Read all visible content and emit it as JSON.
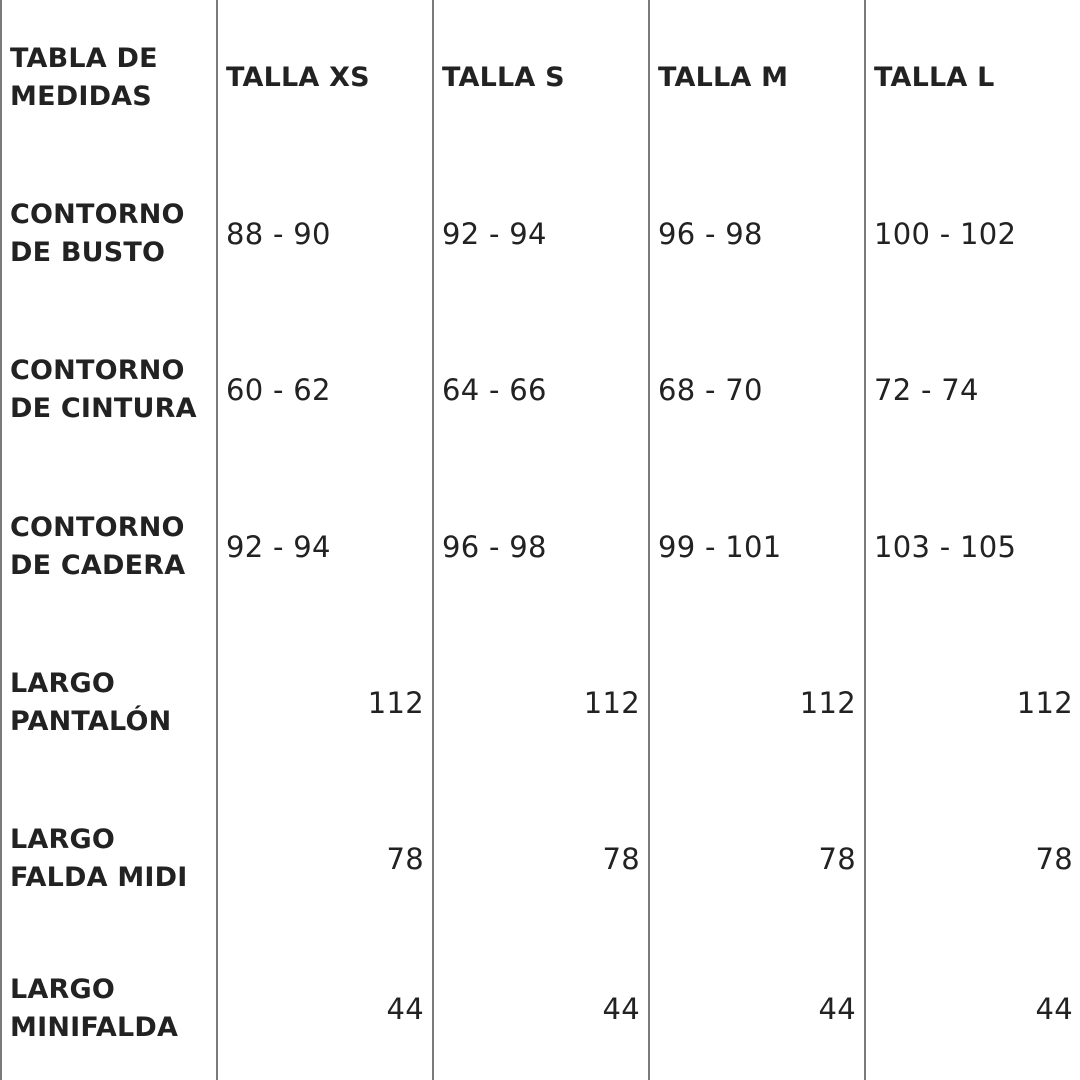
{
  "table": {
    "corner_label": "TABLA DE MEDIDAS",
    "columns": [
      "TALLA XS",
      "TALLA S",
      "TALLA M",
      "TALLA L"
    ],
    "rows": [
      {
        "label": "CONTORNO DE BUSTO",
        "values": [
          "88 - 90",
          "92 - 94",
          "96 - 98",
          "100 - 102"
        ]
      },
      {
        "label": "CONTORNO DE CINTURA",
        "values": [
          "60 - 62",
          "64 - 66",
          "68 - 70",
          "72 - 74"
        ]
      },
      {
        "label": "CONTORNO DE CADERA",
        "values": [
          "92 - 94",
          "96 - 98",
          "99 - 101",
          "103 - 105"
        ]
      },
      {
        "label": "LARGO PANTALÓN",
        "values": [
          "112",
          "112",
          "112",
          "112"
        ]
      },
      {
        "label": "LARGO FALDA MIDI",
        "values": [
          "78",
          "78",
          "78",
          "78"
        ]
      },
      {
        "label": "LARGO MINIFALDA",
        "values": [
          "44",
          "44",
          "44",
          "44"
        ]
      }
    ]
  },
  "colors": {
    "text": "#222222",
    "grid_line": "#7a7a7a",
    "background": "#ffffff"
  }
}
